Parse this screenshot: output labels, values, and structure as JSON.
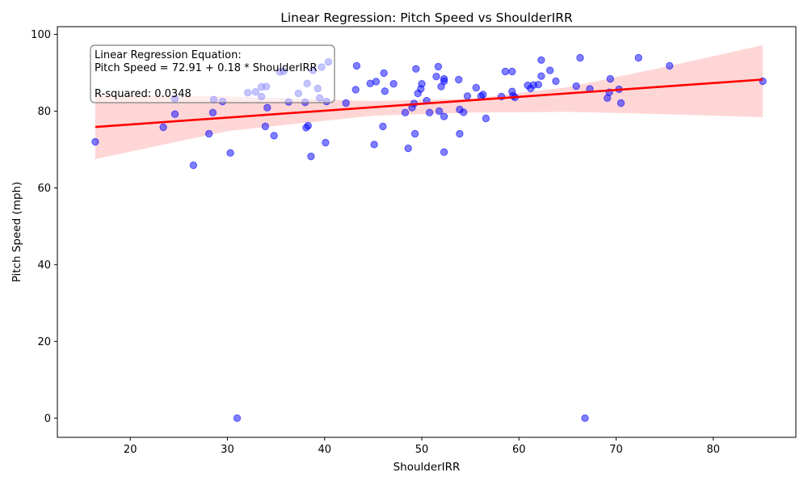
{
  "chart_data": {
    "type": "scatter",
    "title": "Linear Regression: Pitch Speed vs ShoulderIRR",
    "xlabel": "ShoulderIRR",
    "ylabel": "Pitch Speed (mph)",
    "xlim": [
      12.5,
      88.5
    ],
    "ylim": [
      -5,
      102
    ],
    "xticks": [
      20,
      30,
      40,
      50,
      60,
      70,
      80
    ],
    "yticks": [
      0,
      20,
      40,
      60,
      80,
      100
    ],
    "grid": false,
    "colors": {
      "points": "#0000ff",
      "regression_line": "#ff0000",
      "confidence_band": "#ffcccc"
    },
    "annotation": {
      "lines": [
        "Linear Regression Equation:",
        "Pitch Speed = 72.91 + 0.18 * ShoulderIRR",
        "",
        "R-squared: 0.0348"
      ],
      "placement": "top-left"
    },
    "regression": {
      "intercept": 72.91,
      "slope": 0.18,
      "x_range": [
        16.4,
        85.1
      ]
    },
    "confidence_band": {
      "x": [
        16.4,
        30,
        45,
        55,
        65,
        75,
        85.1
      ],
      "lower": [
        67.5,
        74.8,
        78.8,
        79.6,
        79.8,
        79.2,
        78.4
      ],
      "upper": [
        84.3,
        83.8,
        82.6,
        83.2,
        86.2,
        91.5,
        97.2
      ]
    },
    "points": [
      [
        16.4,
        72.0
      ],
      [
        23.4,
        75.8
      ],
      [
        24.6,
        79.2
      ],
      [
        24.6,
        83.2
      ],
      [
        26.5,
        65.9
      ],
      [
        28.1,
        74.1
      ],
      [
        28.5,
        79.6
      ],
      [
        28.6,
        83.0
      ],
      [
        29.5,
        82.5
      ],
      [
        30.3,
        69.1
      ],
      [
        31.0,
        0.0
      ],
      [
        32.1,
        84.8
      ],
      [
        32.9,
        85.0
      ],
      [
        33.5,
        86.3
      ],
      [
        33.5,
        83.8
      ],
      [
        33.9,
        76.0
      ],
      [
        34.0,
        86.4
      ],
      [
        34.1,
        80.9
      ],
      [
        34.8,
        73.6
      ],
      [
        35.4,
        90.2
      ],
      [
        35.8,
        90.4
      ],
      [
        36.3,
        82.4
      ],
      [
        37.3,
        84.6
      ],
      [
        38.0,
        82.3
      ],
      [
        38.1,
        75.7
      ],
      [
        38.2,
        87.2
      ],
      [
        38.3,
        76.2
      ],
      [
        38.6,
        68.2
      ],
      [
        38.8,
        90.6
      ],
      [
        39.3,
        85.9
      ],
      [
        39.5,
        83.4
      ],
      [
        39.7,
        91.5
      ],
      [
        40.1,
        71.8
      ],
      [
        40.2,
        82.5
      ],
      [
        40.4,
        92.8
      ],
      [
        42.2,
        82.1
      ],
      [
        43.2,
        85.6
      ],
      [
        43.3,
        91.8
      ],
      [
        44.7,
        87.2
      ],
      [
        45.1,
        71.3
      ],
      [
        45.3,
        87.7
      ],
      [
        46.0,
        76.0
      ],
      [
        46.1,
        89.9
      ],
      [
        46.2,
        85.2
      ],
      [
        47.1,
        87.1
      ],
      [
        48.3,
        79.6
      ],
      [
        48.6,
        70.3
      ],
      [
        49.0,
        80.9
      ],
      [
        49.2,
        82.0
      ],
      [
        49.3,
        74.1
      ],
      [
        49.4,
        91.0
      ],
      [
        49.6,
        84.6
      ],
      [
        49.9,
        85.8
      ],
      [
        50.0,
        87.1
      ],
      [
        50.5,
        82.7
      ],
      [
        50.8,
        79.6
      ],
      [
        51.5,
        89.0
      ],
      [
        51.7,
        91.6
      ],
      [
        51.8,
        80.0
      ],
      [
        52.0,
        86.4
      ],
      [
        52.3,
        88.4
      ],
      [
        52.3,
        87.8
      ],
      [
        52.3,
        78.6
      ],
      [
        52.3,
        69.3
      ],
      [
        53.8,
        88.2
      ],
      [
        53.9,
        80.4
      ],
      [
        53.9,
        74.1
      ],
      [
        54.3,
        79.7
      ],
      [
        54.7,
        83.9
      ],
      [
        55.6,
        86.1
      ],
      [
        56.1,
        83.9
      ],
      [
        56.3,
        84.3
      ],
      [
        56.6,
        78.1
      ],
      [
        58.2,
        83.8
      ],
      [
        58.6,
        90.3
      ],
      [
        59.3,
        90.3
      ],
      [
        59.3,
        85.1
      ],
      [
        59.4,
        84.0
      ],
      [
        59.6,
        83.6
      ],
      [
        60.9,
        86.7
      ],
      [
        61.2,
        85.9
      ],
      [
        61.5,
        86.8
      ],
      [
        62.0,
        86.9
      ],
      [
        62.3,
        93.3
      ],
      [
        62.3,
        89.1
      ],
      [
        63.2,
        90.6
      ],
      [
        63.8,
        87.8
      ],
      [
        65.9,
        86.5
      ],
      [
        66.3,
        93.9
      ],
      [
        66.8,
        0.0
      ],
      [
        67.3,
        85.8
      ],
      [
        69.1,
        83.4
      ],
      [
        69.3,
        84.9
      ],
      [
        69.4,
        88.4
      ],
      [
        70.3,
        85.7
      ],
      [
        70.5,
        82.1
      ],
      [
        72.3,
        93.9
      ],
      [
        75.5,
        91.8
      ],
      [
        85.1,
        87.8
      ]
    ]
  }
}
